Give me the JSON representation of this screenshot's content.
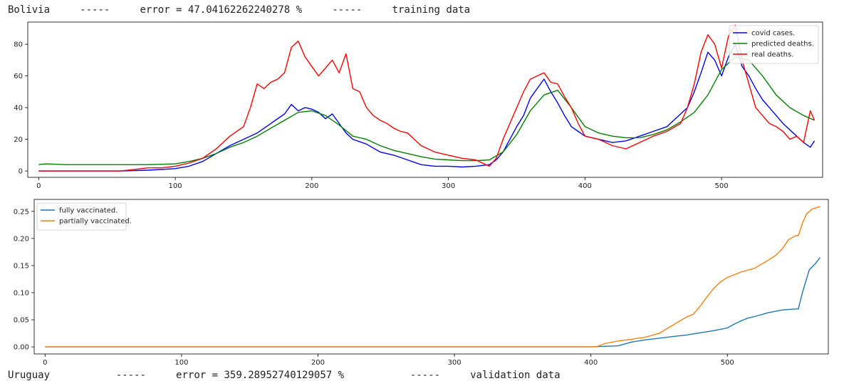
{
  "header_top": {
    "country": "Bolivia",
    "sep1": "-----",
    "error_text": "error = 47.04162262240278 %",
    "sep2": "-----",
    "mode": "training data"
  },
  "header_bottom": {
    "country": "Uruguay",
    "sep1": "-----",
    "error_text": "error = 359.28952740129057 %",
    "sep2": "-----",
    "mode": "validation data"
  },
  "chart_data": [
    {
      "type": "line",
      "title": "",
      "xlabel": "",
      "ylabel": "",
      "xlim": [
        -8,
        574
      ],
      "ylim": [
        -4,
        94
      ],
      "xticks": [
        0,
        100,
        200,
        300,
        400,
        500
      ],
      "yticks": [
        0,
        20,
        40,
        60,
        80
      ],
      "legend_position": "top-right",
      "series": [
        {
          "name": "covid cases.",
          "color": "#0000ff",
          "x": [
            0,
            60,
            80,
            100,
            110,
            120,
            130,
            140,
            150,
            160,
            170,
            180,
            185,
            190,
            195,
            200,
            205,
            210,
            215,
            220,
            225,
            230,
            240,
            250,
            260,
            270,
            280,
            290,
            300,
            310,
            320,
            330,
            335,
            340,
            345,
            350,
            355,
            360,
            365,
            370,
            375,
            380,
            385,
            390,
            395,
            400,
            410,
            420,
            430,
            440,
            450,
            460,
            465,
            470,
            475,
            480,
            485,
            490,
            495,
            500,
            505,
            510,
            515,
            520,
            525,
            530,
            535,
            540,
            545,
            550,
            555,
            560,
            565,
            568
          ],
          "y": [
            0,
            0,
            0.5,
            1.5,
            3,
            6,
            11,
            16,
            20,
            24,
            30,
            36,
            42,
            38,
            40,
            39,
            37,
            33,
            36,
            30,
            24,
            20,
            17,
            12,
            10,
            7,
            4,
            3,
            3,
            2.5,
            3,
            4,
            7,
            12,
            20,
            28,
            35,
            46,
            52,
            58,
            50,
            43,
            35,
            28,
            25,
            22,
            20,
            18,
            19,
            22,
            25,
            28,
            32,
            36,
            40,
            50,
            62,
            75,
            70,
            60,
            72,
            80,
            66,
            60,
            52,
            45,
            40,
            35,
            30,
            26,
            22,
            18,
            15,
            19
          ]
        },
        {
          "name": "predicted deaths.",
          "color": "#008000",
          "x": [
            0,
            5,
            20,
            40,
            60,
            80,
            100,
            110,
            120,
            130,
            140,
            150,
            160,
            170,
            180,
            190,
            200,
            210,
            220,
            230,
            240,
            250,
            260,
            270,
            280,
            290,
            300,
            310,
            320,
            330,
            340,
            350,
            360,
            370,
            380,
            390,
            400,
            410,
            420,
            430,
            440,
            450,
            460,
            470,
            480,
            490,
            500,
            510,
            520,
            530,
            540,
            550,
            560,
            568
          ],
          "y": [
            4,
            4.5,
            4,
            4,
            4,
            4,
            4.5,
            6,
            8,
            11,
            15,
            18,
            22,
            27,
            32,
            37,
            38,
            35,
            29,
            22,
            20,
            16,
            13,
            11,
            9,
            7.5,
            7,
            6.5,
            6.5,
            7,
            12,
            23,
            38,
            48,
            51,
            40,
            28,
            24,
            22,
            21,
            21,
            23,
            26,
            31,
            37,
            48,
            64,
            72,
            70,
            60,
            48,
            40,
            35,
            32
          ]
        },
        {
          "name": "real deaths.",
          "color": "#ff0000",
          "x": [
            0,
            60,
            70,
            80,
            90,
            100,
            110,
            120,
            130,
            140,
            150,
            155,
            160,
            165,
            170,
            175,
            180,
            185,
            190,
            195,
            200,
            205,
            210,
            215,
            220,
            225,
            230,
            235,
            240,
            245,
            250,
            255,
            260,
            265,
            270,
            275,
            280,
            290,
            300,
            310,
            320,
            325,
            330,
            335,
            340,
            345,
            350,
            355,
            360,
            365,
            370,
            375,
            380,
            385,
            390,
            395,
            400,
            410,
            420,
            430,
            440,
            450,
            460,
            470,
            475,
            480,
            485,
            490,
            495,
            500,
            505,
            510,
            515,
            520,
            525,
            530,
            535,
            540,
            545,
            550,
            555,
            560,
            565,
            568
          ],
          "y": [
            0,
            0,
            1,
            2,
            2,
            3,
            5,
            8,
            14,
            22,
            28,
            40,
            55,
            52,
            56,
            58,
            62,
            78,
            82,
            72,
            66,
            60,
            65,
            70,
            62,
            74,
            52,
            50,
            40,
            35,
            32,
            30,
            27,
            25,
            24,
            20,
            16,
            12,
            10,
            8,
            7,
            5,
            3,
            8,
            20,
            30,
            40,
            50,
            58,
            60,
            62,
            56,
            55,
            47,
            40,
            30,
            22,
            20,
            16,
            14,
            18,
            22,
            25,
            30,
            40,
            55,
            75,
            86,
            80,
            65,
            85,
            92,
            70,
            55,
            40,
            35,
            30,
            28,
            25,
            20,
            22,
            18,
            38,
            32
          ]
        }
      ]
    },
    {
      "type": "line",
      "title": "",
      "xlabel": "",
      "ylabel": "",
      "xlim": [
        -8,
        574
      ],
      "ylim": [
        -0.013,
        0.272
      ],
      "xticks": [
        0,
        100,
        200,
        300,
        400,
        500
      ],
      "yticks": [
        0.0,
        0.05,
        0.1,
        0.15,
        0.2,
        0.25
      ],
      "ytick_labels": [
        "0.00",
        "0.05",
        "0.10",
        "0.15",
        "0.20",
        "0.25"
      ],
      "legend_position": "top-left",
      "series": [
        {
          "name": "fully vaccinated.",
          "color": "#1f77b4",
          "x": [
            0,
            100,
            200,
            300,
            400,
            410,
            420,
            430,
            440,
            450,
            460,
            470,
            480,
            490,
            500,
            505,
            510,
            515,
            520,
            530,
            540,
            550,
            552,
            555,
            560,
            565,
            568
          ],
          "y": [
            0,
            0,
            0,
            0,
            0,
            0.001,
            0.002,
            0.009,
            0.013,
            0.016,
            0.019,
            0.022,
            0.026,
            0.03,
            0.035,
            0.042,
            0.048,
            0.053,
            0.056,
            0.063,
            0.068,
            0.07,
            0.07,
            0.1,
            0.142,
            0.155,
            0.165
          ]
        },
        {
          "name": "partially vaccinated.",
          "color": "#ff7f0e",
          "x": [
            0,
            100,
            200,
            300,
            400,
            405,
            410,
            420,
            430,
            440,
            450,
            460,
            470,
            475,
            480,
            485,
            490,
            495,
            500,
            510,
            520,
            530,
            535,
            540,
            545,
            550,
            552,
            555,
            558,
            562,
            568
          ],
          "y": [
            0,
            0,
            0,
            0,
            0,
            0.001,
            0.006,
            0.011,
            0.014,
            0.018,
            0.025,
            0.04,
            0.055,
            0.06,
            0.075,
            0.092,
            0.108,
            0.12,
            0.128,
            0.138,
            0.145,
            0.16,
            0.168,
            0.18,
            0.198,
            0.205,
            0.205,
            0.228,
            0.245,
            0.254,
            0.259
          ]
        }
      ]
    }
  ]
}
